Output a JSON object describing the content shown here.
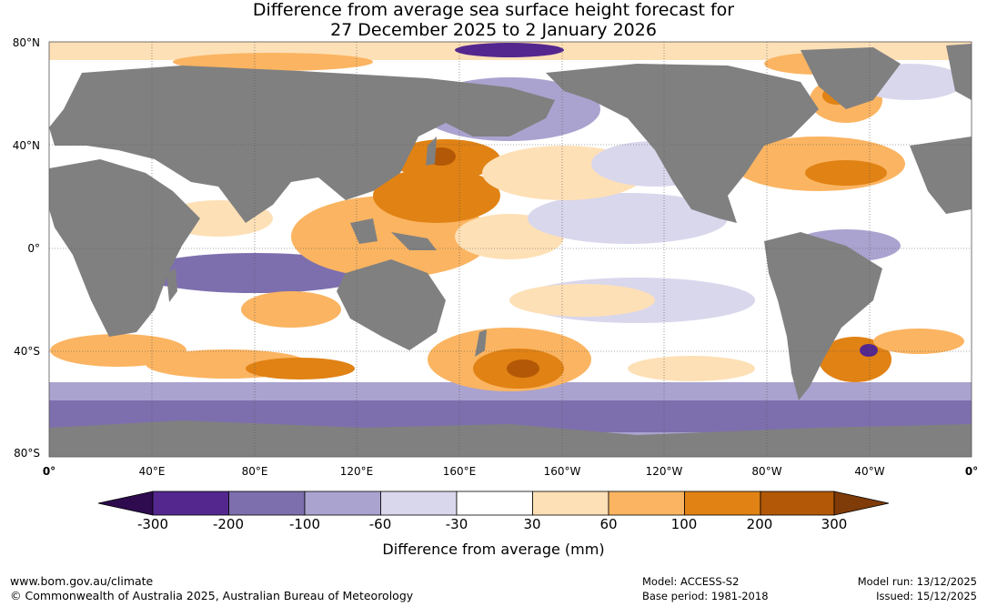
{
  "title": {
    "line1": "Difference from average sea surface height forecast for",
    "line2": "27 December 2025 to 2 January 2026"
  },
  "axes": {
    "lat_labels": [
      "80°N",
      "40°N",
      "0°",
      "40°S",
      "80°S"
    ],
    "lon_labels": [
      "0°",
      "40°E",
      "80°E",
      "120°E",
      "160°E",
      "160°W",
      "120°W",
      "80°W",
      "40°W",
      "0°"
    ]
  },
  "colorbar": {
    "ticks": [
      "-300",
      "-200",
      "-100",
      "-60",
      "-30",
      "30",
      "60",
      "100",
      "200",
      "300"
    ],
    "colors": [
      "#2d0b4e",
      "#54278f",
      "#7d6fae",
      "#aaa3cf",
      "#d9d7ec",
      "#ffffff",
      "#fee0b6",
      "#fbb461",
      "#e08214",
      "#b35806",
      "#7f3b08"
    ],
    "label": "Difference from average (mm)"
  },
  "colors": {
    "land": "#808080",
    "ocean_neutral": "#ffffff",
    "grid": "#555555"
  },
  "footer": {
    "url": "www.bom.gov.au/climate",
    "copyright": "© Commonwealth of Australia 2025, Australian Bureau of Meteorology",
    "model": "Model: ACCESS-S2",
    "base_period": "Base period: 1981-2018",
    "model_run": "Model run: 13/12/2025",
    "issued": "Issued: 15/12/2025"
  }
}
